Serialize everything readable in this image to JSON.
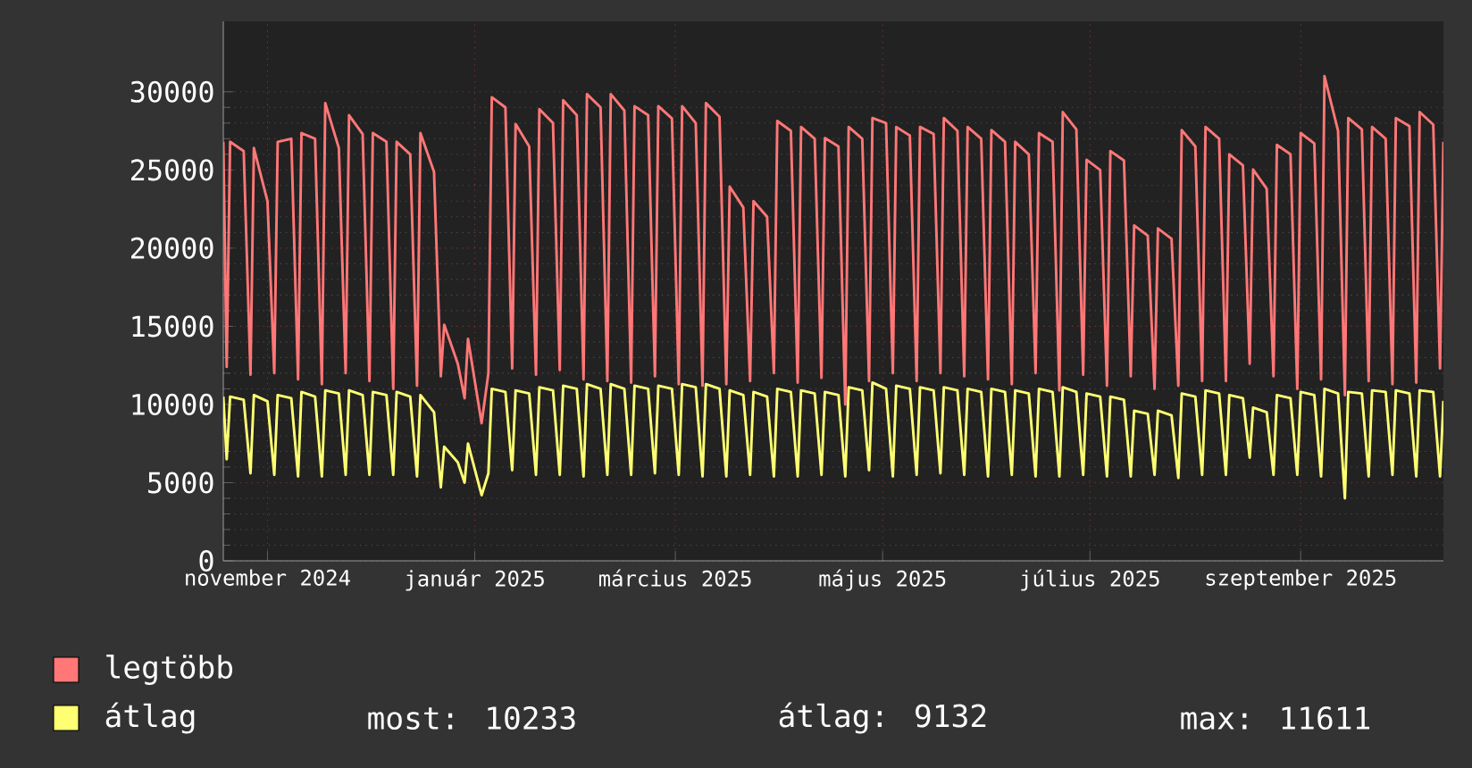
{
  "chart_data": {
    "type": "line",
    "x": [
      "2024-10-19",
      "2024-10-20",
      "2024-10-21",
      "2024-10-25",
      "2024-10-27",
      "2024-10-28",
      "2024-11-01",
      "2024-11-03",
      "2024-11-04",
      "2024-11-08",
      "2024-11-10",
      "2024-11-11",
      "2024-11-15",
      "2024-11-17",
      "2024-11-18",
      "2024-11-22",
      "2024-11-24",
      "2024-11-25",
      "2024-11-29",
      "2024-12-01",
      "2024-12-02",
      "2024-12-06",
      "2024-12-08",
      "2024-12-09",
      "2024-12-13",
      "2024-12-15",
      "2024-12-16",
      "2024-12-20",
      "2024-12-22",
      "2024-12-23",
      "2024-12-27",
      "2024-12-29",
      "2024-12-30",
      "2025-01-03",
      "2025-01-05",
      "2025-01-06",
      "2025-01-10",
      "2025-01-12",
      "2025-01-13",
      "2025-01-17",
      "2025-01-19",
      "2025-01-20",
      "2025-01-24",
      "2025-01-26",
      "2025-01-27",
      "2025-01-31",
      "2025-02-02",
      "2025-02-03",
      "2025-02-07",
      "2025-02-09",
      "2025-02-10",
      "2025-02-14",
      "2025-02-16",
      "2025-02-17",
      "2025-02-21",
      "2025-02-23",
      "2025-02-24",
      "2025-02-28",
      "2025-03-02",
      "2025-03-03",
      "2025-03-07",
      "2025-03-09",
      "2025-03-10",
      "2025-03-14",
      "2025-03-16",
      "2025-03-17",
      "2025-03-21",
      "2025-03-23",
      "2025-03-24",
      "2025-03-28",
      "2025-03-30",
      "2025-03-31",
      "2025-04-04",
      "2025-04-06",
      "2025-04-07",
      "2025-04-11",
      "2025-04-13",
      "2025-04-14",
      "2025-04-18",
      "2025-04-20",
      "2025-04-21",
      "2025-04-25",
      "2025-04-27",
      "2025-04-28",
      "2025-05-02",
      "2025-05-04",
      "2025-05-05",
      "2025-05-09",
      "2025-05-11",
      "2025-05-12",
      "2025-05-16",
      "2025-05-18",
      "2025-05-19",
      "2025-05-23",
      "2025-05-25",
      "2025-05-26",
      "2025-05-30",
      "2025-06-01",
      "2025-06-02",
      "2025-06-06",
      "2025-06-08",
      "2025-06-09",
      "2025-06-13",
      "2025-06-15",
      "2025-06-16",
      "2025-06-20",
      "2025-06-22",
      "2025-06-23",
      "2025-06-27",
      "2025-06-29",
      "2025-06-30",
      "2025-07-04",
      "2025-07-06",
      "2025-07-07",
      "2025-07-11",
      "2025-07-13",
      "2025-07-14",
      "2025-07-18",
      "2025-07-20",
      "2025-07-21",
      "2025-07-25",
      "2025-07-27",
      "2025-07-28",
      "2025-08-01",
      "2025-08-03",
      "2025-08-04",
      "2025-08-08",
      "2025-08-10",
      "2025-08-11",
      "2025-08-15",
      "2025-08-17",
      "2025-08-18",
      "2025-08-22",
      "2025-08-24",
      "2025-08-25",
      "2025-08-29",
      "2025-08-31",
      "2025-09-01",
      "2025-09-05",
      "2025-09-07",
      "2025-09-08",
      "2025-09-12",
      "2025-09-14",
      "2025-09-15",
      "2025-09-19",
      "2025-09-21",
      "2025-09-22",
      "2025-09-26",
      "2025-09-28",
      "2025-09-29",
      "2025-10-03",
      "2025-10-05",
      "2025-10-06",
      "2025-10-10",
      "2025-10-12",
      "2025-10-13"
    ],
    "series": [
      {
        "name": "legtöbb",
        "color": "#ff7777",
        "values": [
          26800,
          12400,
          26800,
          26200,
          11900,
          26400,
          23000,
          12000,
          26800,
          27000,
          11600,
          27360,
          27000,
          11300,
          29280,
          26400,
          12000,
          28500,
          27300,
          11500,
          27360,
          26800,
          11000,
          26800,
          26000,
          11200,
          27360,
          24880,
          11800,
          15100,
          12600,
          10400,
          14200,
          8800,
          12000,
          29650,
          29000,
          12300,
          27940,
          26500,
          11900,
          28890,
          28000,
          12200,
          29460,
          28500,
          11600,
          29850,
          29000,
          11500,
          29850,
          28800,
          11400,
          29080,
          28500,
          11800,
          29080,
          28300,
          11300,
          29080,
          28000,
          11200,
          29280,
          28400,
          11300,
          23930,
          22600,
          11500,
          23000,
          22000,
          12000,
          28130,
          27500,
          11400,
          27750,
          27000,
          11700,
          27040,
          26500,
          10000,
          27750,
          27000,
          11500,
          28320,
          28000,
          12000,
          27750,
          27200,
          11500,
          27750,
          27300,
          12000,
          28320,
          27500,
          11800,
          27750,
          27000,
          11600,
          27550,
          26800,
          11300,
          26800,
          26000,
          12000,
          27360,
          26800,
          10900,
          28700,
          27600,
          11900,
          25650,
          25000,
          11200,
          26210,
          25600,
          11800,
          21450,
          20800,
          11000,
          21260,
          20600,
          11200,
          27550,
          26500,
          11500,
          27750,
          27000,
          11500,
          26000,
          25300,
          12600,
          25030,
          23800,
          11800,
          26600,
          26000,
          11000,
          27360,
          26700,
          11600,
          31000,
          27500,
          10600,
          28320,
          27600,
          11500,
          27750,
          27000,
          11300,
          28320,
          27800,
          11400,
          28700,
          27900,
          12300,
          26800
        ]
      },
      {
        "name": "átlag",
        "color": "#ffff73",
        "values": [
          10500,
          6500,
          10500,
          10300,
          5600,
          10600,
          10200,
          5500,
          10600,
          10400,
          5400,
          10800,
          10500,
          5400,
          10900,
          10700,
          5500,
          10900,
          10600,
          5500,
          10800,
          10600,
          5500,
          10800,
          10500,
          5400,
          10600,
          9500,
          4700,
          7300,
          6300,
          5000,
          7500,
          4200,
          5600,
          11000,
          10800,
          5800,
          10900,
          10700,
          5500,
          11100,
          10900,
          5500,
          11200,
          11000,
          5400,
          11300,
          11000,
          5500,
          11300,
          11000,
          5500,
          11200,
          11000,
          5600,
          11200,
          11000,
          5500,
          11300,
          11100,
          5400,
          11300,
          11000,
          5400,
          10900,
          10600,
          5500,
          10800,
          10500,
          5400,
          11000,
          10800,
          5400,
          10900,
          10700,
          5500,
          10800,
          10600,
          5400,
          11100,
          10900,
          5800,
          11400,
          11000,
          5400,
          11200,
          11000,
          5500,
          11100,
          10900,
          5600,
          11100,
          10900,
          5500,
          11000,
          10800,
          5400,
          11000,
          10800,
          5500,
          10900,
          10700,
          5400,
          11000,
          10800,
          5400,
          11100,
          10800,
          5500,
          10700,
          10500,
          5400,
          10500,
          10300,
          5400,
          9600,
          9400,
          5500,
          9600,
          9300,
          5300,
          10700,
          10500,
          5500,
          10900,
          10700,
          5500,
          10600,
          10400,
          6600,
          9800,
          9500,
          5500,
          10600,
          10400,
          5500,
          10800,
          10600,
          5400,
          11000,
          10700,
          4000,
          10800,
          10700,
          5400,
          10900,
          10800,
          5500,
          10900,
          10700,
          5400,
          10900,
          10800,
          5400,
          10233
        ]
      }
    ],
    "xlim": [
      "2024-10-19",
      "2025-10-13"
    ],
    "xticks": [
      {
        "value": "2024-11-01",
        "label": "november 2024"
      },
      {
        "value": "2025-01-01",
        "label": "január 2025"
      },
      {
        "value": "2025-03-01",
        "label": "március 2025"
      },
      {
        "value": "2025-05-01",
        "label": "május 2025"
      },
      {
        "value": "2025-07-01",
        "label": "július 2025"
      },
      {
        "value": "2025-09-01",
        "label": "szeptember 2025"
      }
    ],
    "ylim": [
      0,
      34500
    ],
    "yticks": [
      0,
      5000,
      10000,
      15000,
      20000,
      25000,
      30000
    ],
    "grid": true,
    "legend": "bottom",
    "annotations": [
      "most: 10233",
      "átlag: 9132",
      "max: 11611"
    ]
  }
}
